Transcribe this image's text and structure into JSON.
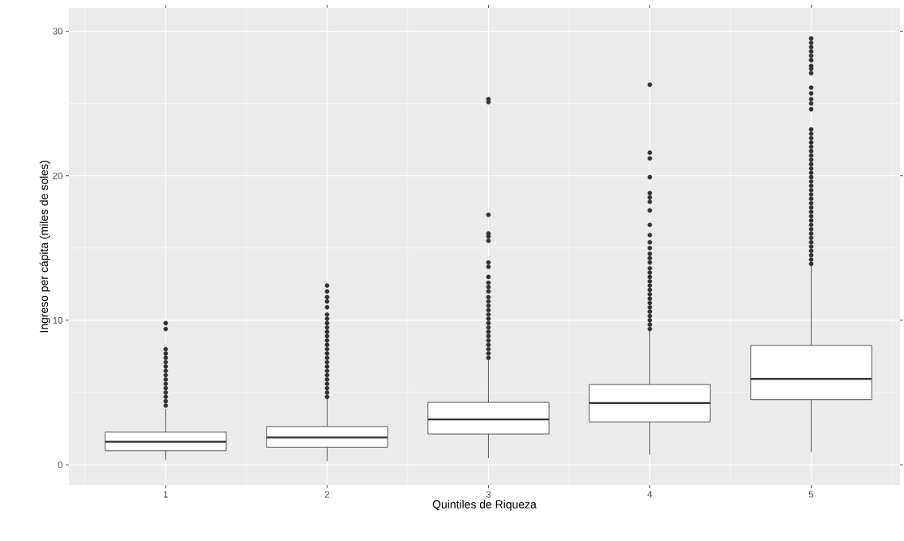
{
  "chart_data": {
    "type": "box",
    "xlabel": "Quintiles de Riqueza",
    "ylabel": "Ingreso per cápita (miles de soles)",
    "categories": [
      "1",
      "2",
      "3",
      "4",
      "5"
    ],
    "ylim": [
      -1.4,
      31.6
    ],
    "yticks": [
      0,
      10,
      20,
      30
    ],
    "grid": true,
    "marker": "circle",
    "series": [
      {
        "color": "#333333",
        "boxes": [
          {
            "low": 0.35,
            "q1": 0.97,
            "median": 1.59,
            "q3": 2.26,
            "high": 3.87,
            "outliers": [
              4.1,
              4.4,
              4.7,
              5.0,
              5.3,
              5.6,
              5.9,
              6.2,
              6.5,
              6.8,
              7.1,
              7.4,
              7.7,
              8.0,
              9.4,
              9.8
            ]
          },
          {
            "low": 0.26,
            "q1": 1.22,
            "median": 1.89,
            "q3": 2.65,
            "high": 4.6,
            "outliers": [
              4.7,
              5.0,
              5.3,
              5.6,
              5.9,
              6.2,
              6.5,
              6.8,
              7.1,
              7.4,
              7.7,
              8.0,
              8.3,
              8.6,
              8.9,
              9.2,
              9.5,
              9.8,
              10.1,
              10.4,
              10.9,
              11.3,
              11.6,
              12.0,
              12.4
            ]
          },
          {
            "low": 0.45,
            "q1": 2.13,
            "median": 3.14,
            "q3": 4.32,
            "high": 7.27,
            "outliers": [
              7.4,
              7.7,
              8.0,
              8.3,
              8.6,
              8.9,
              9.2,
              9.5,
              9.8,
              10.1,
              10.4,
              10.7,
              11.0,
              11.3,
              11.6,
              12.0,
              12.3,
              12.6,
              13.0,
              13.7,
              14.0,
              15.5,
              15.8,
              16.0,
              17.3,
              25.1,
              25.3
            ]
          },
          {
            "low": 0.69,
            "q1": 2.97,
            "median": 4.28,
            "q3": 5.55,
            "high": 9.33,
            "outliers": [
              9.4,
              9.7,
              10.0,
              10.3,
              10.6,
              10.9,
              11.2,
              11.5,
              11.8,
              12.1,
              12.4,
              12.7,
              13.0,
              13.3,
              13.6,
              14.0,
              14.3,
              14.6,
              15.0,
              15.4,
              15.9,
              16.6,
              17.6,
              18.2,
              18.5,
              18.8,
              19.9,
              21.2,
              21.6,
              26.3
            ]
          },
          {
            "low": 0.91,
            "q1": 4.51,
            "median": 5.94,
            "q3": 8.26,
            "high": 13.83,
            "outliers": [
              13.9,
              14.2,
              14.5,
              14.8,
              15.1,
              15.4,
              15.7,
              16.0,
              16.3,
              16.6,
              16.9,
              17.2,
              17.5,
              17.8,
              18.1,
              18.4,
              18.7,
              19.0,
              19.3,
              19.6,
              19.9,
              20.2,
              20.5,
              20.8,
              21.1,
              21.4,
              21.7,
              22.0,
              22.3,
              22.6,
              22.9,
              23.2,
              24.6,
              25.0,
              25.3,
              25.7,
              26.1,
              27.1,
              27.4,
              27.6,
              28.0,
              28.3,
              28.6,
              28.9,
              29.2,
              29.5
            ]
          }
        ]
      }
    ]
  }
}
